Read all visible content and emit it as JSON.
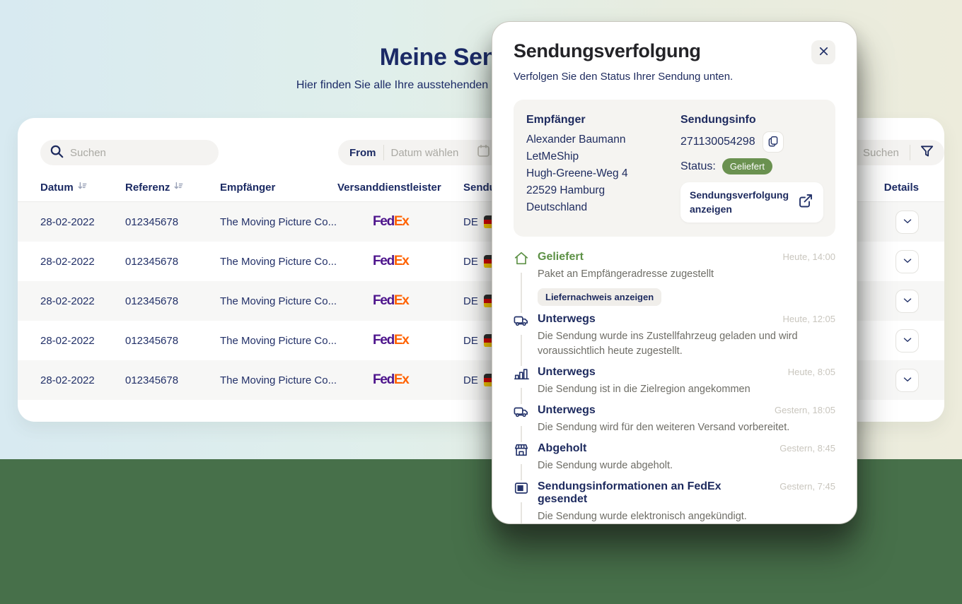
{
  "page": {
    "title": "Meine Sendungen",
    "subtitle": "Hier finden Sie alle Ihre ausstehenden und abgeschlossenen Sendungen."
  },
  "toolbar": {
    "search_placeholder": "Suchen",
    "date_from_label": "From",
    "date_placeholder": "Datum wählen",
    "right_search_placeholder": "Suchen"
  },
  "table": {
    "columns": [
      {
        "label": "Datum",
        "sortable": true
      },
      {
        "label": "Referenz",
        "sortable": true
      },
      {
        "label": "Empfänger",
        "sortable": false
      },
      {
        "label": "Versanddienstleister",
        "sortable": false
      },
      {
        "label": "Sendung",
        "sortable": false
      },
      {
        "label": "Details",
        "sortable": false
      }
    ],
    "rows": [
      {
        "datum": "28-02-2022",
        "referenz": "012345678",
        "empfaenger": "The Moving Picture Co...",
        "carrier": "FedEx",
        "route_from": "DE",
        "route_sep": "-"
      },
      {
        "datum": "28-02-2022",
        "referenz": "012345678",
        "empfaenger": "The Moving Picture Co...",
        "carrier": "FedEx",
        "route_from": "DE",
        "route_sep": "-"
      },
      {
        "datum": "28-02-2022",
        "referenz": "012345678",
        "empfaenger": "The Moving Picture Co...",
        "carrier": "FedEx",
        "route_from": "DE",
        "route_sep": "-"
      },
      {
        "datum": "28-02-2022",
        "referenz": "012345678",
        "empfaenger": "The Moving Picture Co...",
        "carrier": "FedEx",
        "route_from": "DE",
        "route_sep": "-"
      },
      {
        "datum": "28-02-2022",
        "referenz": "012345678",
        "empfaenger": "The Moving Picture Co...",
        "carrier": "FedEx",
        "route_from": "DE",
        "route_sep": "-"
      }
    ]
  },
  "modal": {
    "title": "Sendungsverfolgung",
    "subtitle": "Verfolgen Sie den Status Ihrer Sendung unten.",
    "recipient": {
      "heading": "Empfänger",
      "lines": [
        "Alexander Baumann",
        "LetMeShip",
        "Hugh-Greene-Weg 4",
        "22529 Hamburg",
        "Deutschland"
      ]
    },
    "shipment_info": {
      "heading": "Sendungsinfo",
      "tracking_number": "271130054298",
      "status_label": "Status:",
      "status_value": "Geliefert",
      "link_button_label": "Sendungsverfolgung anzeigen"
    },
    "timeline": [
      {
        "icon": "home-icon",
        "title": "Geliefert",
        "green": true,
        "time": "Heute, 14:00",
        "description": "Paket an Empfängeradresse zugestellt",
        "action": "Liefernachweis anzeigen"
      },
      {
        "icon": "truck-icon",
        "title": "Unterwegs",
        "green": false,
        "time": "Heute, 12:05",
        "description": "Die Sendung wurde ins Zustellfahrzeug geladen und wird voraussichtlich heute zugestellt."
      },
      {
        "icon": "city-icon",
        "title": "Unterwegs",
        "green": false,
        "time": "Heute, 8:05",
        "description": "Die Sendung ist in die Zielregion angekommen"
      },
      {
        "icon": "truck-icon",
        "title": "Unterwegs",
        "green": false,
        "time": "Gestern, 18:05",
        "description": "Die Sendung wird für den weiteren Versand vorbereitet."
      },
      {
        "icon": "store-icon",
        "title": "Abgeholt",
        "green": false,
        "time": "Gestern, 8:45",
        "description": "Die Sendung wurde abgeholt."
      },
      {
        "icon": "monitor-icon",
        "title": "Sendungsinformationen an FedEx gesendet",
        "green": false,
        "time": "Gestern, 7:45",
        "description": "Die Sendung wurde elektronisch angekündigt."
      }
    ]
  },
  "colors": {
    "navy": "#1d2a5e",
    "green_text": "#5d9146",
    "badge_green": "#6a9150",
    "fedex_purple": "#4d148c",
    "fedex_orange": "#ff6200",
    "bg_bottom_green": "#47704a",
    "card_white": "#ffffff"
  }
}
